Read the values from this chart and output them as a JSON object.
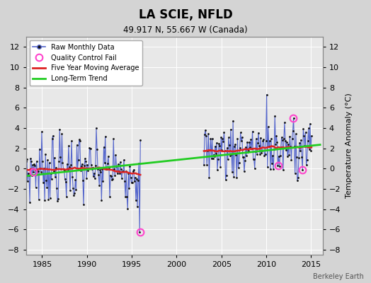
{
  "title": "LA SCIE, NFLD",
  "subtitle": "49.917 N, 55.667 W (Canada)",
  "ylabel": "Temperature Anomaly (°C)",
  "credit": "Berkeley Earth",
  "xlim": [
    1983.2,
    2016.3
  ],
  "ylim": [
    -8.5,
    13.0
  ],
  "yticks": [
    -8,
    -6,
    -4,
    -2,
    0,
    2,
    4,
    6,
    8,
    10,
    12
  ],
  "xticks": [
    1985,
    1990,
    1995,
    2000,
    2005,
    2010,
    2015
  ],
  "background_color": "#d4d4d4",
  "plot_bg_color": "#e8e8e8",
  "grid_color": "#ffffff",
  "raw_line_color": "#5566cc",
  "raw_dot_color": "#111111",
  "moving_avg_color": "#dd2222",
  "trend_color": "#22cc22",
  "qc_fail_color": "#ff44cc",
  "trend_x": [
    1983.0,
    2016.0
  ],
  "trend_y": [
    -0.75,
    2.35
  ],
  "period1_start": 1983.0,
  "period1_end": 1996.0,
  "period2_start": 2003.0,
  "period2_end": 2015.1,
  "qc_fail_points": [
    [
      1984.0,
      -0.3
    ],
    [
      1995.9,
      -6.3
    ],
    [
      2011.3,
      0.3
    ],
    [
      2013.0,
      5.0
    ],
    [
      2014.0,
      -0.1
    ]
  ],
  "spike_2010": [
    2010.08,
    7.3
  ],
  "spike_2010b": [
    2011.0,
    5.2
  ]
}
